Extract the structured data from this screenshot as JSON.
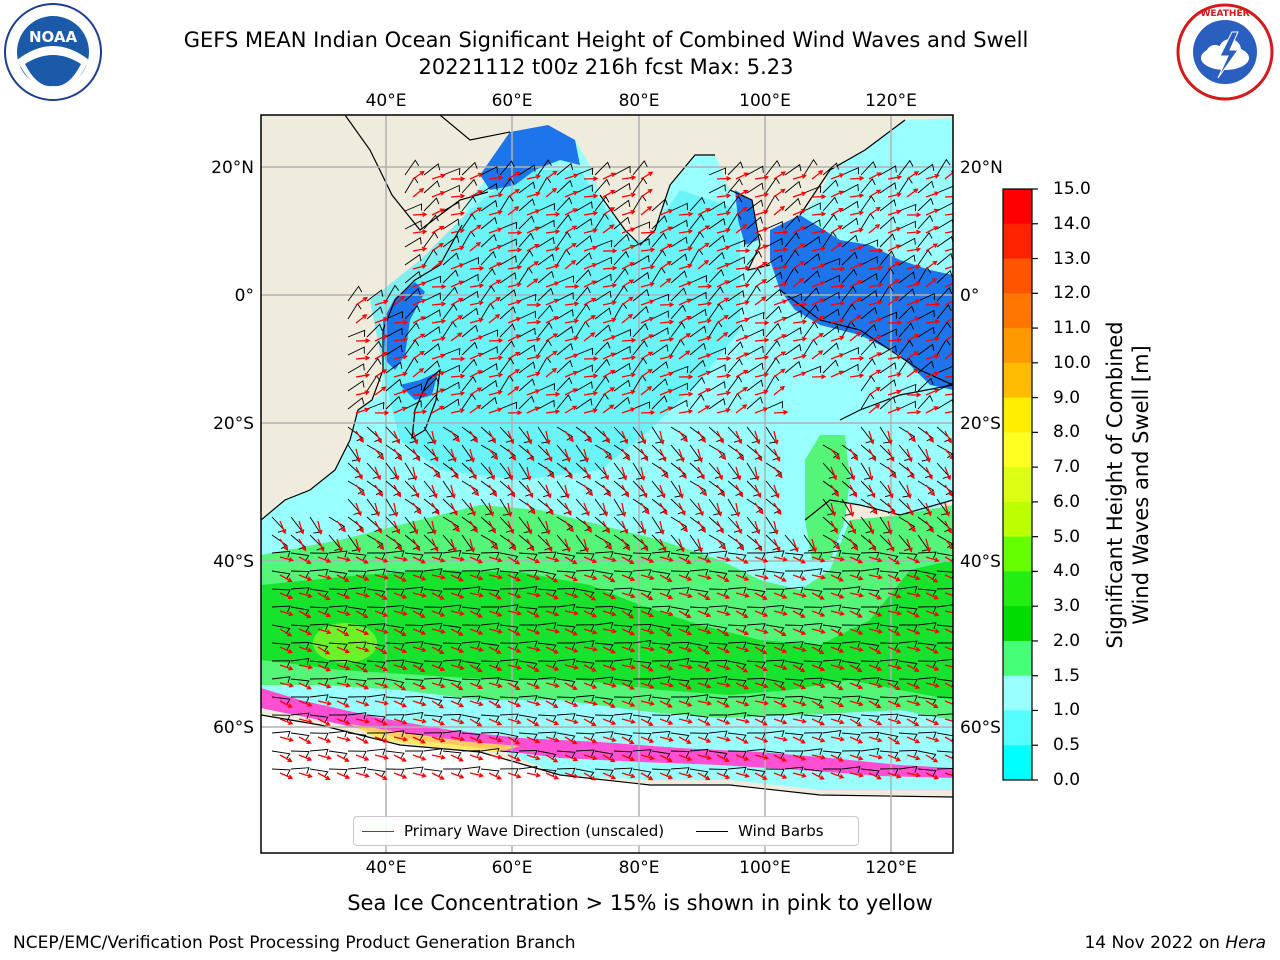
{
  "header": {
    "title_line1": "GEFS MEAN Indian Ocean Significant Height of Combined Wind Waves and Swell",
    "title_line2": "20221112 t00z 216h fcst   Max: 5.23"
  },
  "logos": {
    "noaa_text": "NOAA",
    "noaa_ring_text": "NATIONAL OCEANIC AND ATMOSPHERIC ADMINISTRATION · U.S. DEPARTMENT OF COMMERCE",
    "nws_ring_text": "NATIONAL WEATHER SERVICE"
  },
  "map": {
    "lon_ticks": [
      "40°E",
      "60°E",
      "80°E",
      "100°E",
      "120°E"
    ],
    "lat_ticks": [
      "20°N",
      "0°",
      "20°S",
      "40°S",
      "60°S"
    ],
    "land_color": "#efecdd",
    "ocean_light": "#99ffff",
    "ocean_mid": "#5cf0f5",
    "shelf_blue": "#1e74ea",
    "wave_green": "#55f57a",
    "wave_bright_green": "#17e32f",
    "ice_pink": "#ff4fd2"
  },
  "legend": {
    "wave_direction_label": "Primary Wave Direction (unscaled)",
    "wind_barbs_label": "Wind Barbs",
    "wave_direction_color": "#ff0000",
    "wind_barbs_color": "#000000"
  },
  "colorbar": {
    "label_line1": "Significant Height of Combined",
    "label_line2": "Wind Waves and Swell [m]",
    "ticks": [
      "15.0",
      "14.0",
      "13.0",
      "12.0",
      "11.0",
      "10.0",
      "9.0",
      "8.0",
      "7.0",
      "6.0",
      "5.0",
      "4.0",
      "3.0",
      "2.0",
      "1.5",
      "1.0",
      "0.5",
      "0.0"
    ],
    "bands_top_to_bottom": [
      "#ff0000",
      "#ff2200",
      "#ff5500",
      "#ff7700",
      "#ff9900",
      "#ffbb00",
      "#ffee00",
      "#ffff22",
      "#ddff11",
      "#bbff00",
      "#66ff00",
      "#22ee11",
      "#00dd00",
      "#44ff77",
      "#99ffff",
      "#55ffff",
      "#00ffff",
      "#1177ff",
      "#0000ff"
    ]
  },
  "footer": {
    "ice_note": "Sea Ice Concentration > 15% is shown in pink to yellow",
    "credit": "NCEP/EMC/Verification Post Processing Product Generation Branch",
    "date_prefix": "14 Nov 2022 on ",
    "host": "Hera"
  }
}
